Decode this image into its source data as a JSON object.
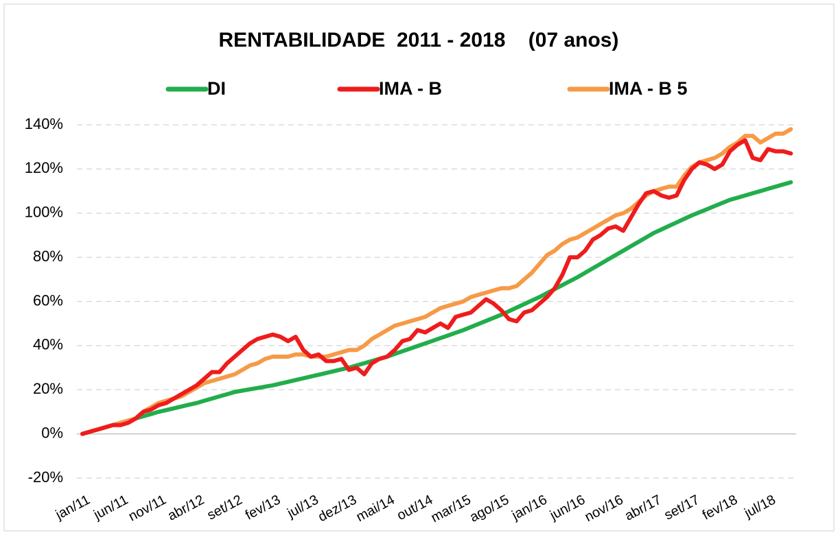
{
  "chart_data": {
    "type": "line",
    "title": "RENTABILIDADE  2011 - 2018    (07 anos)",
    "categories": [
      "jan/11",
      null,
      null,
      null,
      null,
      "jun/11",
      null,
      null,
      null,
      null,
      "nov/11",
      null,
      null,
      null,
      null,
      "abr/12",
      null,
      null,
      null,
      null,
      "set/12",
      null,
      null,
      null,
      null,
      "fev/13",
      null,
      null,
      null,
      null,
      "jul/13",
      null,
      null,
      null,
      null,
      "dez/13",
      null,
      null,
      null,
      null,
      "mai/14",
      null,
      null,
      null,
      null,
      "out/14",
      null,
      null,
      null,
      null,
      "mar/15",
      null,
      null,
      null,
      null,
      "ago/15",
      null,
      null,
      null,
      null,
      "jan/16",
      null,
      null,
      null,
      null,
      "jun/16",
      null,
      null,
      null,
      null,
      "nov/16",
      null,
      null,
      null,
      null,
      "abr/17",
      null,
      null,
      null,
      null,
      "set/17",
      null,
      null,
      null,
      null,
      "fev/18",
      null,
      null,
      null,
      null,
      "jul/18",
      null,
      null,
      null
    ],
    "series": [
      {
        "name": "DI",
        "color": "#22ad4c",
        "values": [
          0,
          1,
          2,
          3,
          4,
          5,
          6,
          7,
          8,
          9,
          10,
          10.8,
          11.6,
          12.4,
          13.2,
          14,
          15,
          16,
          17,
          18,
          19,
          19.6,
          20.2,
          20.8,
          21.4,
          22,
          22.8,
          23.6,
          24.4,
          25.2,
          26,
          26.8,
          27.6,
          28.4,
          29.2,
          30,
          31,
          32,
          33,
          34,
          35,
          36.2,
          37.4,
          38.6,
          39.8,
          41,
          42.2,
          43.4,
          44.6,
          45.8,
          47,
          48.4,
          49.8,
          51.2,
          52.6,
          54,
          55.6,
          57.2,
          58.8,
          60.4,
          62,
          63.8,
          65.6,
          67.4,
          69.2,
          71,
          73,
          75,
          77,
          79,
          81,
          83,
          85,
          87,
          89,
          91,
          92.6,
          94.2,
          95.8,
          97.4,
          99,
          100.4,
          101.8,
          103.2,
          104.6,
          106,
          107,
          108,
          109,
          110,
          111,
          112,
          113,
          114
        ]
      },
      {
        "name": "IMA - B",
        "color": "#ee1c1c",
        "values": [
          0,
          1,
          2,
          3,
          4,
          4,
          5,
          7,
          10,
          11,
          13,
          14,
          16,
          18,
          20,
          22,
          25,
          28,
          28,
          32,
          35,
          38,
          41,
          43,
          44,
          45,
          44,
          42,
          44,
          38,
          35,
          36,
          33,
          33,
          34,
          29,
          30,
          27,
          32,
          34,
          35,
          38,
          42,
          43,
          47,
          46,
          48,
          50,
          48,
          53,
          54,
          55,
          58,
          61,
          59,
          56,
          52,
          51,
          55,
          56,
          59,
          62,
          66,
          72,
          80,
          80,
          83,
          88,
          90,
          93,
          94,
          92,
          98,
          104,
          109,
          110,
          108,
          107,
          108,
          115,
          120,
          123,
          122,
          120,
          122,
          128,
          131,
          133,
          125,
          124,
          129,
          128,
          128,
          127
        ]
      },
      {
        "name": "IMA - B 5",
        "color": "#f79a46",
        "values": [
          0,
          1,
          2,
          3,
          4,
          5,
          6,
          7,
          10,
          12,
          14,
          15,
          16,
          17,
          19,
          21,
          23,
          24,
          25,
          26,
          27,
          29,
          31,
          32,
          34,
          35,
          35,
          35,
          36,
          36,
          35,
          35,
          35,
          36,
          37,
          38,
          38,
          40,
          43,
          45,
          47,
          49,
          50,
          51,
          52,
          53,
          55,
          57,
          58,
          59,
          60,
          62,
          63,
          64,
          65,
          66,
          66,
          67,
          70,
          73,
          77,
          81,
          83,
          86,
          88,
          89,
          91,
          93,
          95,
          97,
          99,
          100,
          102,
          105,
          108,
          110,
          111,
          112,
          112,
          117,
          121,
          123,
          124,
          125,
          127,
          130,
          132,
          135,
          135,
          132,
          134,
          136,
          136,
          138
        ]
      }
    ],
    "ylim": [
      -20,
      140
    ],
    "yticks": [
      {
        "value": -20,
        "label": "-20%"
      },
      {
        "value": 0,
        "label": "0%"
      },
      {
        "value": 20,
        "label": "20%"
      },
      {
        "value": 40,
        "label": "40%"
      },
      {
        "value": 60,
        "label": "60%"
      },
      {
        "value": 80,
        "label": "80%"
      },
      {
        "value": 100,
        "label": "100%"
      },
      {
        "value": 120,
        "label": "120%"
      },
      {
        "value": 140,
        "label": "140%"
      }
    ],
    "grid": true
  }
}
